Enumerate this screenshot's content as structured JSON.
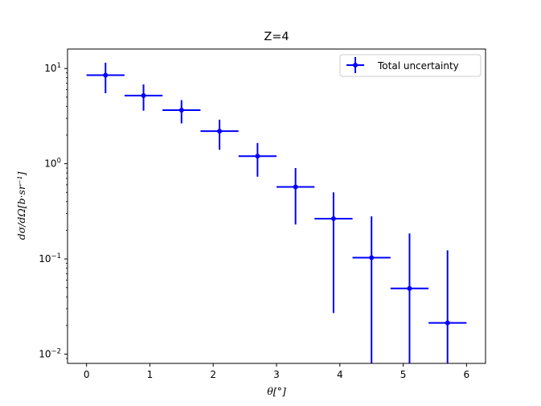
{
  "chart_data": {
    "type": "scatter",
    "title": "Z=4",
    "xlabel": "θ[°]",
    "ylabel": "dσ/dΩ[b·sr⁻¹]",
    "yscale": "log",
    "xlim": [
      -0.3,
      6.3
    ],
    "ylim": [
      0.008,
      16
    ],
    "grid": false,
    "legend_position": "top-right",
    "x_ticks": [
      "0",
      "1",
      "2",
      "3",
      "4",
      "5",
      "6"
    ],
    "y_ticks": [
      "10",
      "10",
      "10",
      "10"
    ],
    "y_tick_exponents": [
      "1",
      "0",
      "−1",
      "−2"
    ],
    "color": "#0000ff",
    "series": [
      {
        "name": "Total uncertainty",
        "x": [
          0.3,
          0.9,
          1.5,
          2.1,
          2.7,
          3.3,
          3.9,
          4.5,
          5.1,
          5.7
        ],
        "x_err": [
          0.3,
          0.3,
          0.3,
          0.3,
          0.3,
          0.3,
          0.3,
          0.3,
          0.3,
          0.3
        ],
        "y": [
          8.5,
          5.2,
          3.65,
          2.2,
          1.2,
          0.57,
          0.265,
          0.103,
          0.049,
          0.0213
        ],
        "y_low": [
          5.5,
          3.6,
          2.65,
          1.4,
          0.73,
          0.23,
          0.027,
          0.008,
          0.008,
          0.008
        ],
        "y_high": [
          11.5,
          6.8,
          4.65,
          2.9,
          1.65,
          0.9,
          0.5,
          0.28,
          0.185,
          0.123
        ]
      }
    ]
  }
}
